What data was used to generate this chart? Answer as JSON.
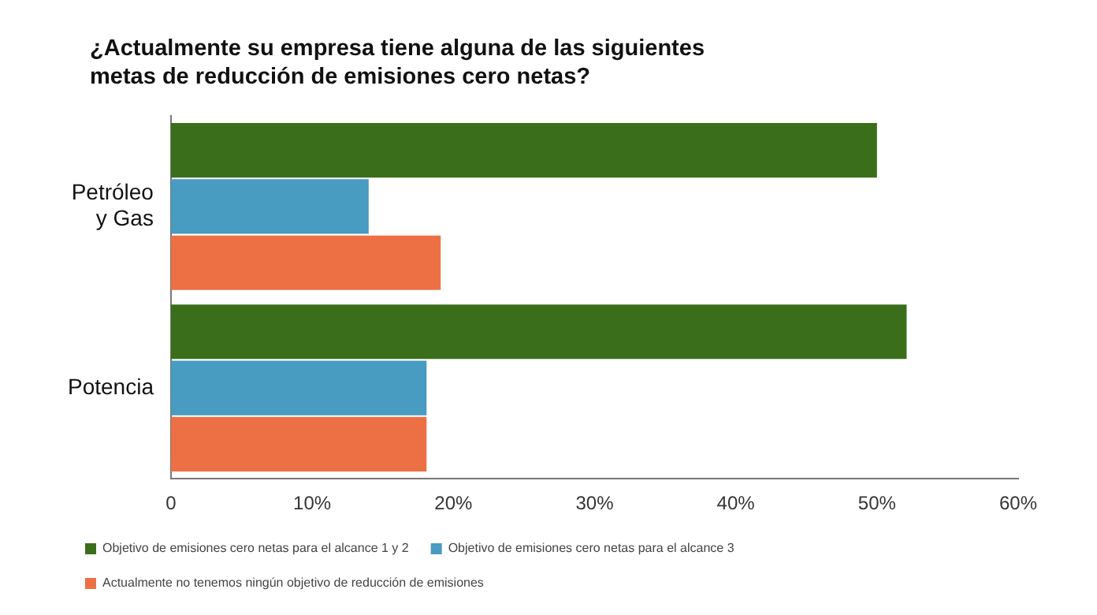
{
  "chart_data": {
    "type": "bar",
    "orientation": "horizontal",
    "title": "¿Actualmente su empresa tiene alguna de las siguientes metas de reducción de emisiones cero netas?",
    "categories": [
      "Petróleo\ny Gas",
      "Potencia"
    ],
    "series": [
      {
        "name": "Objetivo de emisiones cero netas para el alcance 1 y 2",
        "color": "#3b6e1b",
        "values": [
          50.0,
          52.1
        ]
      },
      {
        "name": "Objetivo de emisiones cero netas para el alcance 3",
        "color": "#489bc1",
        "values": [
          14.0,
          18.1
        ]
      },
      {
        "name": "Actualmente no tenemos ningún objetivo de reducción de emisiones",
        "color": "#ed7045",
        "values": [
          19.1,
          18.1
        ]
      }
    ],
    "xlim": [
      0,
      60
    ],
    "xticks": [
      {
        "value": 0,
        "label": "0"
      },
      {
        "value": 10,
        "label": "10%"
      },
      {
        "value": 20,
        "label": "20%"
      },
      {
        "value": 30,
        "label": "30%"
      },
      {
        "value": 40,
        "label": "40%"
      },
      {
        "value": 50,
        "label": "50%"
      },
      {
        "value": 60,
        "label": "60%"
      }
    ],
    "grid": false,
    "legend": "bottom"
  }
}
